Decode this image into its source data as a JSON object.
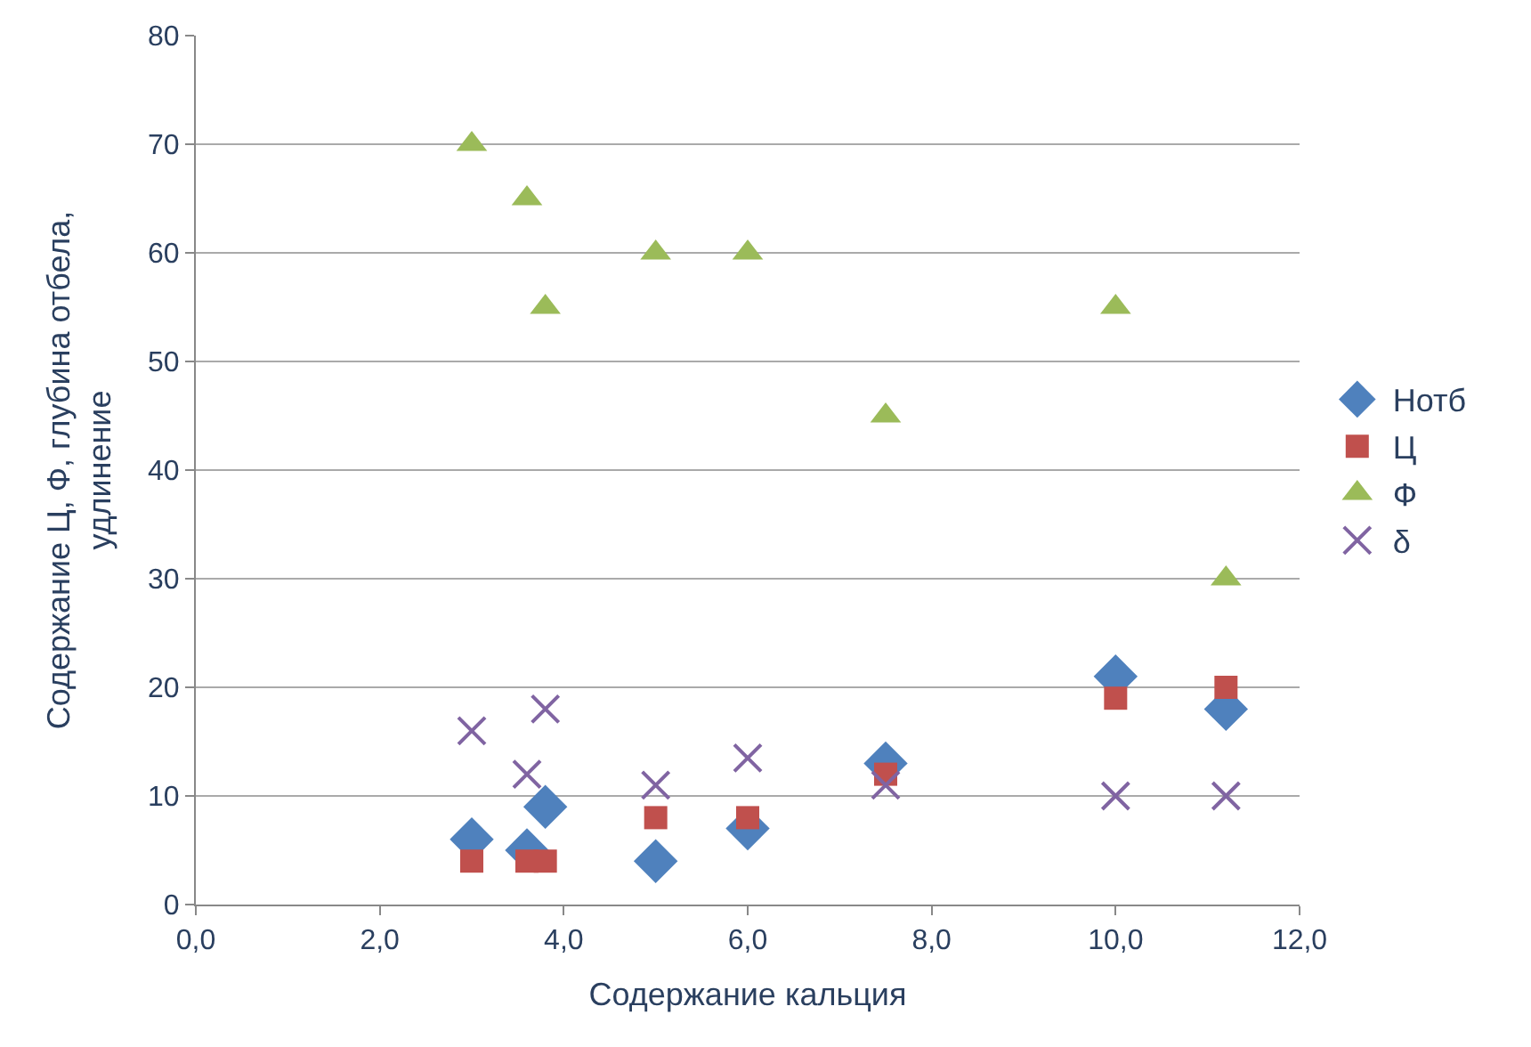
{
  "chart_data": {
    "type": "scatter",
    "xlabel": "Содержание кальция",
    "ylabel": "Содержание Ц, Ф, глубина отбела,\nудлинение",
    "x": [
      3.0,
      3.6,
      3.8,
      5.0,
      6.0,
      7.5,
      10.0,
      11.2
    ],
    "series": [
      {
        "name": "Нотб",
        "color": "#4f81bd",
        "marker": "diamond",
        "values": [
          6,
          5,
          9,
          4,
          7,
          13,
          21,
          18
        ]
      },
      {
        "name": "Ц",
        "color": "#c0504d",
        "marker": "square",
        "values": [
          4,
          4,
          4,
          8,
          8,
          12,
          19,
          20
        ]
      },
      {
        "name": "Ф",
        "color": "#9bbb59",
        "marker": "triangle",
        "values": [
          70,
          65,
          55,
          60,
          60,
          45,
          55,
          30
        ]
      },
      {
        "name": "δ",
        "color": "#8064a2",
        "marker": "cross",
        "values": [
          16,
          12,
          18,
          11,
          13.5,
          11,
          10,
          10
        ]
      }
    ],
    "xlim": [
      0,
      12
    ],
    "xticks": [
      {
        "value": 0,
        "label": "0,0"
      },
      {
        "value": 2,
        "label": "2,0"
      },
      {
        "value": 4,
        "label": "4,0"
      },
      {
        "value": 6,
        "label": "6,0"
      },
      {
        "value": 8,
        "label": "8,0"
      },
      {
        "value": 10,
        "label": "10,0"
      },
      {
        "value": 12,
        "label": "12,0"
      }
    ],
    "ylim": [
      0,
      80
    ],
    "yticks": [
      0,
      10,
      20,
      30,
      40,
      50,
      60,
      70,
      80
    ],
    "grid": "y",
    "legend": "right"
  }
}
